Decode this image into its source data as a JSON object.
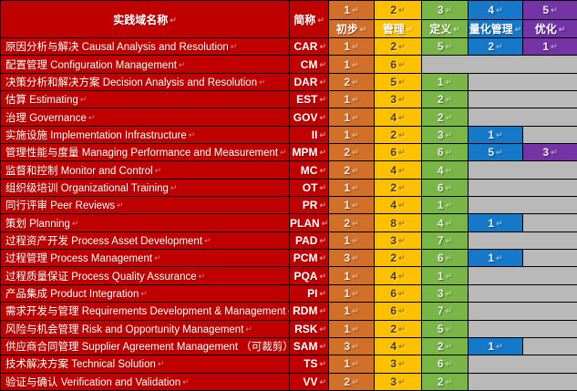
{
  "table": {
    "end_mark": "↵",
    "header": {
      "name_col": "实践域名称",
      "abbr_col": "简称",
      "levels": [
        {
          "num": "1",
          "label": "初步"
        },
        {
          "num": "2",
          "label": "管理"
        },
        {
          "num": "3",
          "label": "定义"
        },
        {
          "num": "4",
          "label": "量化管理"
        },
        {
          "num": "5",
          "label": "优化"
        }
      ]
    },
    "rows": [
      {
        "name": "原因分析与解决 Causal Analysis and Resolution",
        "abbr": "CAR",
        "values": [
          1,
          2,
          5,
          2,
          1
        ]
      },
      {
        "name": "配置管理 Configuration Management",
        "abbr": "CM",
        "values": [
          1,
          6,
          null,
          null,
          null
        ]
      },
      {
        "name": "决策分析和解决方案 Decision Analysis and Resolution",
        "abbr": "DAR",
        "values": [
          2,
          5,
          1,
          null,
          null
        ]
      },
      {
        "name": "估算 Estimating",
        "abbr": "EST",
        "values": [
          1,
          3,
          2,
          null,
          null
        ]
      },
      {
        "name": "治理 Governance",
        "abbr": "GOV",
        "values": [
          1,
          4,
          2,
          null,
          null
        ]
      },
      {
        "name": "实施设施 Implementation Infrastructure",
        "abbr": "II",
        "values": [
          1,
          2,
          3,
          1,
          null
        ]
      },
      {
        "name": "管理性能与度量 Managing Performance and Measurement",
        "abbr": "MPM",
        "values": [
          2,
          6,
          6,
          5,
          3
        ]
      },
      {
        "name": "监督和控制 Monitor and Control",
        "abbr": "MC",
        "values": [
          2,
          4,
          4,
          null,
          null
        ]
      },
      {
        "name": "组织级培训 Organizational Training",
        "abbr": "OT",
        "values": [
          1,
          2,
          6,
          null,
          null
        ]
      },
      {
        "name": "同行评审 Peer Reviews",
        "abbr": "PR",
        "values": [
          1,
          4,
          1,
          null,
          null
        ]
      },
      {
        "name": "策划 Planning",
        "abbr": "PLAN",
        "values": [
          2,
          8,
          4,
          1,
          null
        ]
      },
      {
        "name": "过程资产开发 Process Asset Development",
        "abbr": "PAD",
        "values": [
          1,
          3,
          7,
          null,
          null
        ]
      },
      {
        "name": "过程管理 Process Management",
        "abbr": "PCM",
        "values": [
          3,
          2,
          6,
          1,
          null
        ]
      },
      {
        "name": "过程质量保证 Process Quality Assurance",
        "abbr": "PQA",
        "values": [
          1,
          4,
          1,
          null,
          null
        ]
      },
      {
        "name": "产品集成 Product Integration",
        "abbr": "PI",
        "values": [
          1,
          6,
          3,
          null,
          null
        ]
      },
      {
        "name": "需求开发与管理 Requirements Development & Management",
        "abbr": "RDM",
        "values": [
          1,
          6,
          7,
          null,
          null
        ]
      },
      {
        "name": "风险与机会管理 Risk and Opportunity Management",
        "abbr": "RSK",
        "values": [
          1,
          2,
          5,
          null,
          null
        ]
      },
      {
        "name": "供应商合同管理 Supplier Agreement Management （可裁剪）",
        "abbr": "SAM",
        "values": [
          3,
          4,
          2,
          1,
          null
        ]
      },
      {
        "name": "技术解决方案 Technical Solution",
        "abbr": "TS",
        "values": [
          1,
          3,
          6,
          null,
          null
        ]
      },
      {
        "name": "验证与确认 Verification and Validation",
        "abbr": "VV",
        "values": [
          2,
          3,
          2,
          null,
          null
        ]
      }
    ]
  },
  "colors": {
    "header_red": "#C00000",
    "level_colors": [
      "#D26F28",
      "#FFC000",
      "#7AB547",
      "#1578C9",
      "#7434A5"
    ],
    "empty_gray": "#B9B9B9",
    "border": "#000000"
  }
}
